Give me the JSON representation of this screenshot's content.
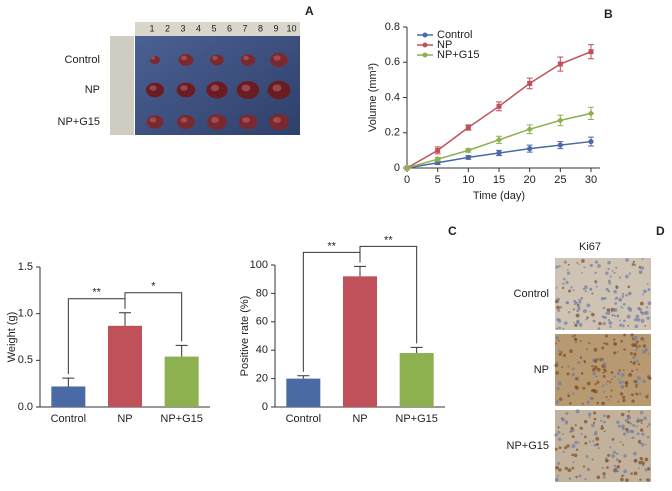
{
  "figure": {
    "panel_labels": [
      "A",
      "B",
      "C",
      "D"
    ],
    "tumor_photo": {
      "row_labels": [
        "Control",
        "NP",
        "NP+G15"
      ],
      "ruler": [
        1,
        2,
        3,
        4,
        5,
        6,
        7,
        8,
        9,
        10
      ]
    },
    "ki67": {
      "title": "Ki67",
      "row_labels": [
        "Control",
        "NP",
        "NP+G15"
      ]
    }
  },
  "chart_data": [
    {
      "type": "line",
      "xlabel": "Time (day)",
      "ylabel": "Volume (mm³)",
      "x": [
        0,
        5,
        10,
        15,
        20,
        25,
        30
      ],
      "series": [
        {
          "name": "Control",
          "color": "#4a6aa5",
          "values": [
            0,
            0.03,
            0.06,
            0.085,
            0.11,
            0.13,
            0.15
          ],
          "errors": [
            0,
            0.01,
            0.01,
            0.015,
            0.02,
            0.02,
            0.025
          ]
        },
        {
          "name": "NP",
          "color": "#c0505a",
          "values": [
            0,
            0.1,
            0.23,
            0.35,
            0.48,
            0.59,
            0.66
          ],
          "errors": [
            0,
            0.02,
            0.015,
            0.025,
            0.03,
            0.04,
            0.04
          ]
        },
        {
          "name": "NP+G15",
          "color": "#8db050",
          "values": [
            0,
            0.05,
            0.1,
            0.16,
            0.22,
            0.27,
            0.31
          ],
          "errors": [
            0,
            0.01,
            0.01,
            0.02,
            0.025,
            0.03,
            0.035
          ]
        }
      ],
      "xlim": [
        0,
        30
      ],
      "xticks": [
        0,
        5,
        10,
        15,
        20,
        25,
        30
      ],
      "ylim": [
        0,
        0.8
      ],
      "yticks": [
        0,
        0.2,
        0.4,
        0.6,
        0.8
      ],
      "legend": "upper left"
    },
    {
      "type": "bar",
      "ylabel": "Weight (g)",
      "categories": [
        "Control",
        "NP",
        "NP+G15"
      ],
      "values": [
        0.22,
        0.87,
        0.54
      ],
      "errors": [
        0.09,
        0.14,
        0.12
      ],
      "colors": [
        "#4a6aa5",
        "#c0505a",
        "#8db050"
      ],
      "ylim": [
        0,
        1.5
      ],
      "yticks": [
        {
          "value": 0,
          "label": "0.0"
        },
        0.5,
        {
          "value": 1,
          "label": "1.0"
        },
        1.5
      ],
      "annotations": [
        "**",
        "*"
      ]
    },
    {
      "type": "bar",
      "ylabel": "Positive rate (%)",
      "categories": [
        "Control",
        "NP",
        "NP+G15"
      ],
      "values": [
        20,
        92,
        38
      ],
      "errors": [
        2,
        7,
        4
      ],
      "colors": [
        "#4a6aa5",
        "#c0505a",
        "#8db050"
      ],
      "ylim": [
        0,
        100
      ],
      "yticks": [
        0,
        20,
        40,
        60,
        80,
        100
      ],
      "annotations": [
        "**",
        "**"
      ]
    }
  ]
}
